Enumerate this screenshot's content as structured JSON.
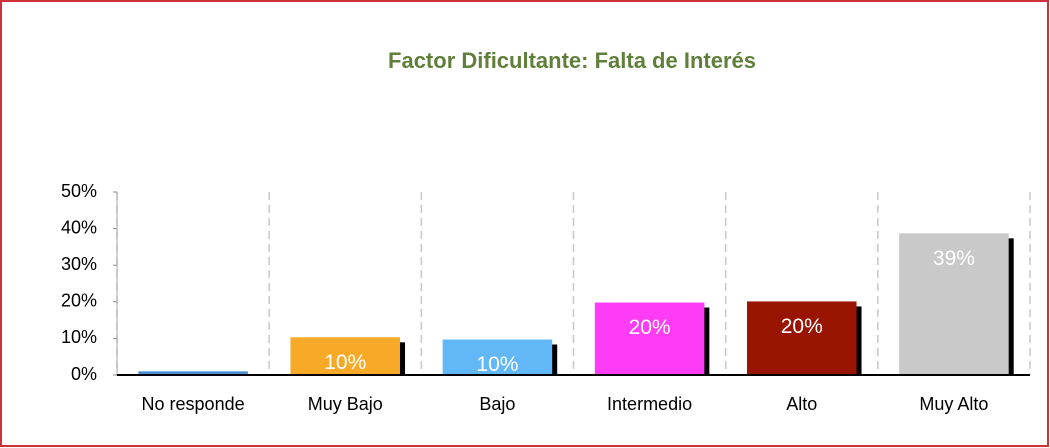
{
  "chart_data": {
    "type": "bar",
    "title": "Factor Dificultante: Falta de Interés",
    "categories": [
      "No responde",
      "Muy Bajo",
      "Bajo",
      "Intermedio",
      "Alto",
      "Muy Alto"
    ],
    "values": [
      1,
      10.3,
      9.7,
      19.8,
      20.1,
      38.7
    ],
    "value_labels": [
      null,
      "10%",
      "10%",
      "20%",
      "20%",
      "39%"
    ],
    "colors": [
      "#4a8fd6",
      "#f7a928",
      "#62b8f7",
      "#ff3cf5",
      "#9a1402",
      "#c9c9c9"
    ],
    "ylim": [
      0,
      50
    ],
    "yticks": [
      {
        "value": 0,
        "label": "0%"
      },
      {
        "value": 10,
        "label": "10%"
      },
      {
        "value": 20,
        "label": "20%"
      },
      {
        "value": 30,
        "label": "30%"
      },
      {
        "value": 40,
        "label": "40%"
      },
      {
        "value": 50,
        "label": "50%"
      }
    ],
    "grid": true
  }
}
